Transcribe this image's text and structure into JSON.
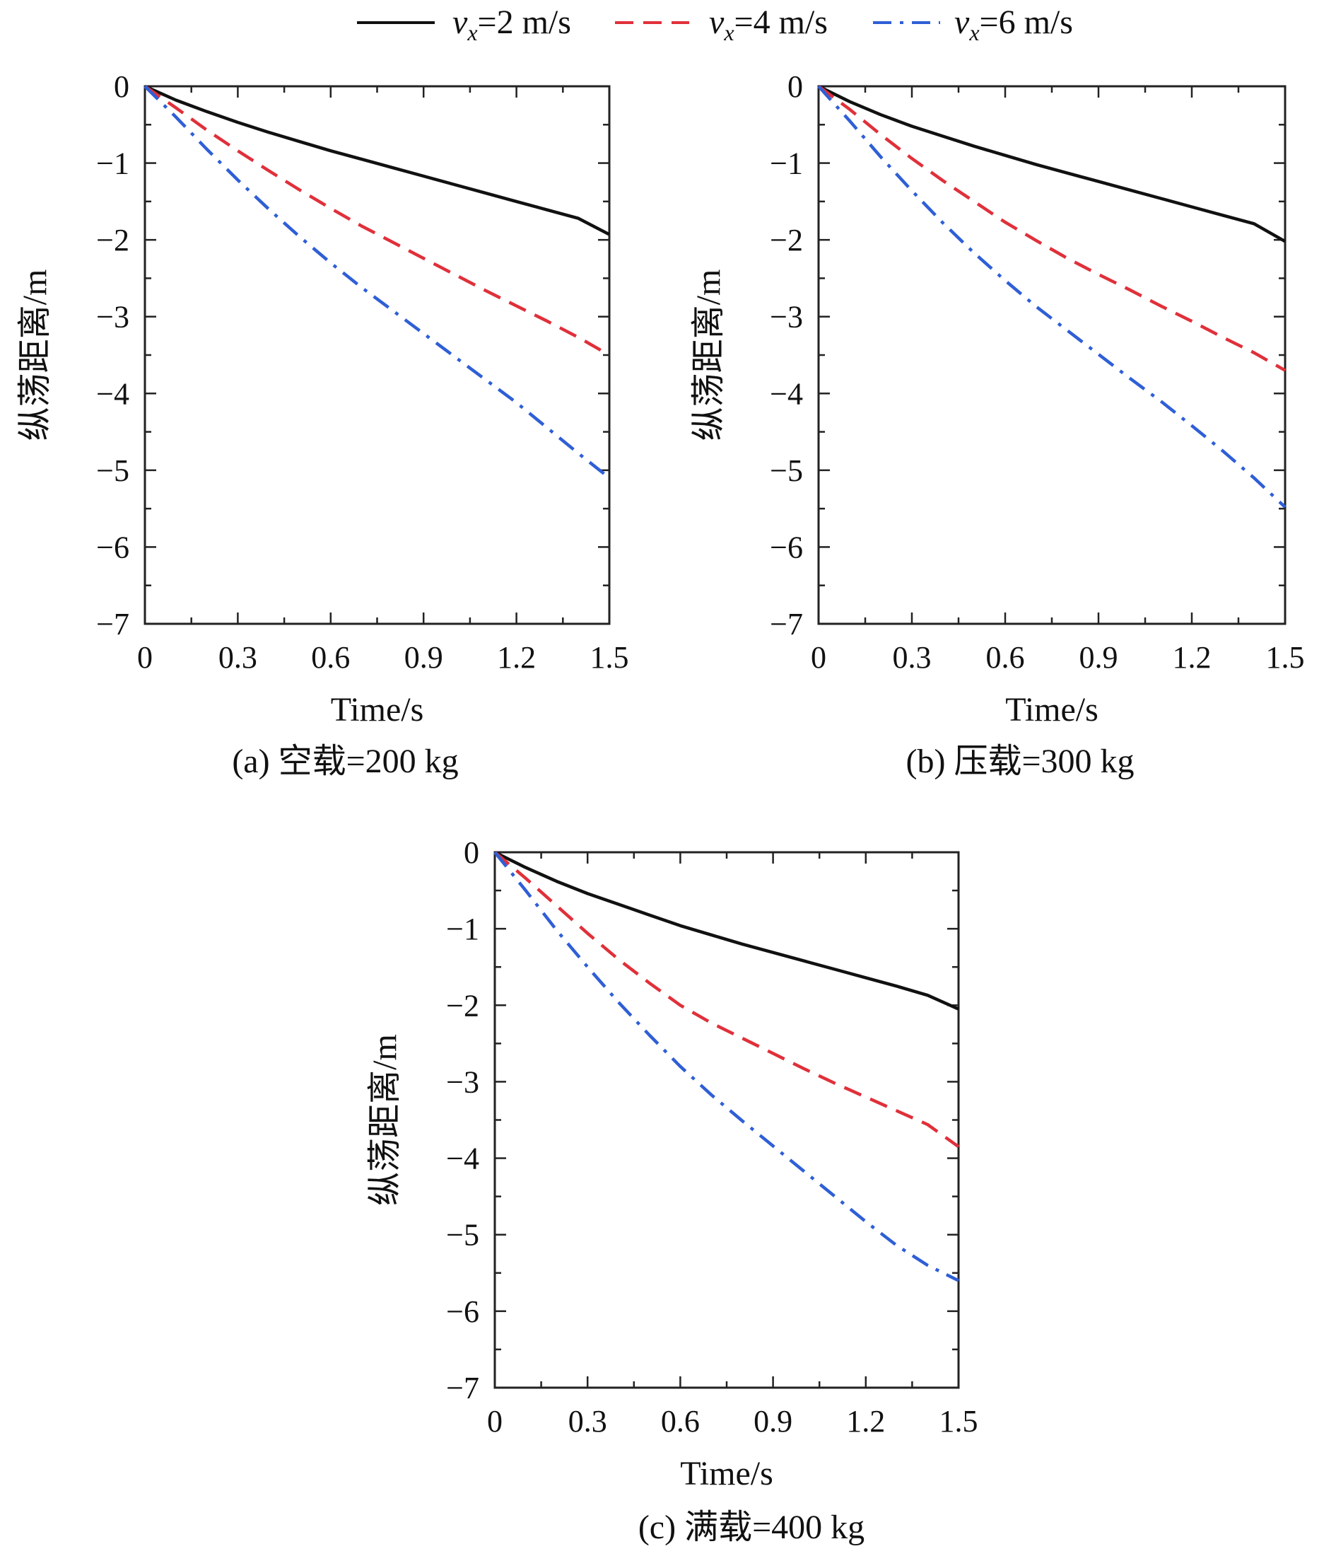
{
  "legend": [
    {
      "symbol": "v",
      "subscript": "x",
      "value_label": "=2 m/s",
      "color": "#111111",
      "dash": "solid"
    },
    {
      "symbol": "v",
      "subscript": "x",
      "value_label": "=4 m/s",
      "color": "#e0303a",
      "dash": "dashed"
    },
    {
      "symbol": "v",
      "subscript": "x",
      "value_label": "=6 m/s",
      "color": "#2f5fd6",
      "dash": "dashdot"
    }
  ],
  "chart_data": [
    {
      "type": "line",
      "caption": "(a) 空载=200 kg",
      "xlabel": "Time/s",
      "ylabel": "纵荡距离/m",
      "xlim": [
        0,
        1.5
      ],
      "ylim": [
        -7,
        0
      ],
      "xticks": [
        0,
        0.3,
        0.6,
        0.9,
        1.2,
        1.5
      ],
      "xtick_labels": [
        "0",
        "0.3",
        "0.6",
        "0.9",
        "1.2",
        "1.5"
      ],
      "yticks": [
        0,
        -1,
        -2,
        -3,
        -4,
        -5,
        -6,
        -7
      ],
      "ytick_labels": [
        "0",
        "−1",
        "−2",
        "−3",
        "−4",
        "−5",
        "−6",
        "−7"
      ],
      "x": [
        0,
        0.1,
        0.2,
        0.3,
        0.4,
        0.5,
        0.6,
        0.7,
        0.8,
        0.9,
        1.0,
        1.1,
        1.2,
        1.3,
        1.4,
        1.5
      ],
      "series": [
        {
          "name": "vx=2 m/s",
          "values": [
            0,
            -0.18,
            -0.33,
            -0.47,
            -0.6,
            -0.72,
            -0.84,
            -0.95,
            -1.06,
            -1.17,
            -1.28,
            -1.39,
            -1.5,
            -1.61,
            -1.72,
            -1.93
          ]
        },
        {
          "name": "vx=4 m/s",
          "values": [
            0,
            -0.28,
            -0.57,
            -0.84,
            -1.1,
            -1.35,
            -1.59,
            -1.82,
            -2.03,
            -2.24,
            -2.45,
            -2.66,
            -2.86,
            -3.06,
            -3.27,
            -3.5
          ]
        },
        {
          "name": "vx=6 m/s",
          "values": [
            0,
            -0.4,
            -0.82,
            -1.22,
            -1.6,
            -1.96,
            -2.3,
            -2.62,
            -2.92,
            -3.22,
            -3.52,
            -3.82,
            -4.12,
            -4.45,
            -4.78,
            -5.1
          ]
        }
      ]
    },
    {
      "type": "line",
      "caption": "(b) 压载=300 kg",
      "xlabel": "Time/s",
      "ylabel": "纵荡距离/m",
      "xlim": [
        0,
        1.5
      ],
      "ylim": [
        -7,
        0
      ],
      "xticks": [
        0,
        0.3,
        0.6,
        0.9,
        1.2,
        1.5
      ],
      "xtick_labels": [
        "0",
        "0.3",
        "0.6",
        "0.9",
        "1.2",
        "1.5"
      ],
      "yticks": [
        0,
        -1,
        -2,
        -3,
        -4,
        -5,
        -6,
        -7
      ],
      "ytick_labels": [
        "0",
        "−1",
        "−2",
        "−3",
        "−4",
        "−5",
        "−6",
        "−7"
      ],
      "x": [
        0,
        0.1,
        0.2,
        0.3,
        0.4,
        0.5,
        0.6,
        0.7,
        0.8,
        0.9,
        1.0,
        1.1,
        1.2,
        1.3,
        1.4,
        1.5
      ],
      "series": [
        {
          "name": "vx=2 m/s",
          "values": [
            0,
            -0.2,
            -0.37,
            -0.52,
            -0.65,
            -0.78,
            -0.9,
            -1.02,
            -1.13,
            -1.24,
            -1.35,
            -1.46,
            -1.57,
            -1.68,
            -1.79,
            -2.02
          ]
        },
        {
          "name": "vx=4 m/s",
          "values": [
            0,
            -0.3,
            -0.63,
            -0.94,
            -1.23,
            -1.5,
            -1.77,
            -2.01,
            -2.24,
            -2.45,
            -2.65,
            -2.86,
            -3.06,
            -3.27,
            -3.47,
            -3.7
          ]
        },
        {
          "name": "vx=6 m/s",
          "values": [
            0,
            -0.45,
            -0.92,
            -1.36,
            -1.78,
            -2.17,
            -2.53,
            -2.87,
            -3.18,
            -3.49,
            -3.8,
            -4.1,
            -4.42,
            -4.75,
            -5.1,
            -5.48
          ]
        }
      ]
    },
    {
      "type": "line",
      "caption": "(c) 满载=400 kg",
      "xlabel": "Time/s",
      "ylabel": "纵荡距离/m",
      "xlim": [
        0,
        1.5
      ],
      "ylim": [
        -7,
        0
      ],
      "xticks": [
        0,
        0.3,
        0.6,
        0.9,
        1.2,
        1.5
      ],
      "xtick_labels": [
        "0",
        "0.3",
        "0.6",
        "0.9",
        "1.2",
        "1.5"
      ],
      "yticks": [
        0,
        -1,
        -2,
        -3,
        -4,
        -5,
        -6,
        -7
      ],
      "ytick_labels": [
        "0",
        "−1",
        "−2",
        "−3",
        "−4",
        "−5",
        "−6",
        "−7"
      ],
      "x": [
        0,
        0.1,
        0.2,
        0.3,
        0.4,
        0.5,
        0.6,
        0.7,
        0.8,
        0.9,
        1.0,
        1.1,
        1.2,
        1.3,
        1.4,
        1.5
      ],
      "series": [
        {
          "name": "vx=2 m/s",
          "values": [
            0,
            -0.2,
            -0.38,
            -0.54,
            -0.68,
            -0.82,
            -0.96,
            -1.08,
            -1.2,
            -1.31,
            -1.42,
            -1.53,
            -1.64,
            -1.75,
            -1.87,
            -2.05
          ]
        },
        {
          "name": "vx=4 m/s",
          "values": [
            0,
            -0.34,
            -0.7,
            -1.06,
            -1.4,
            -1.71,
            -2.0,
            -2.23,
            -2.43,
            -2.63,
            -2.83,
            -3.02,
            -3.2,
            -3.38,
            -3.56,
            -3.85
          ]
        },
        {
          "name": "vx=6 m/s",
          "values": [
            0,
            -0.5,
            -1.02,
            -1.5,
            -1.96,
            -2.39,
            -2.8,
            -3.17,
            -3.51,
            -3.84,
            -4.17,
            -4.5,
            -4.83,
            -5.14,
            -5.4,
            -5.6
          ]
        }
      ]
    }
  ]
}
